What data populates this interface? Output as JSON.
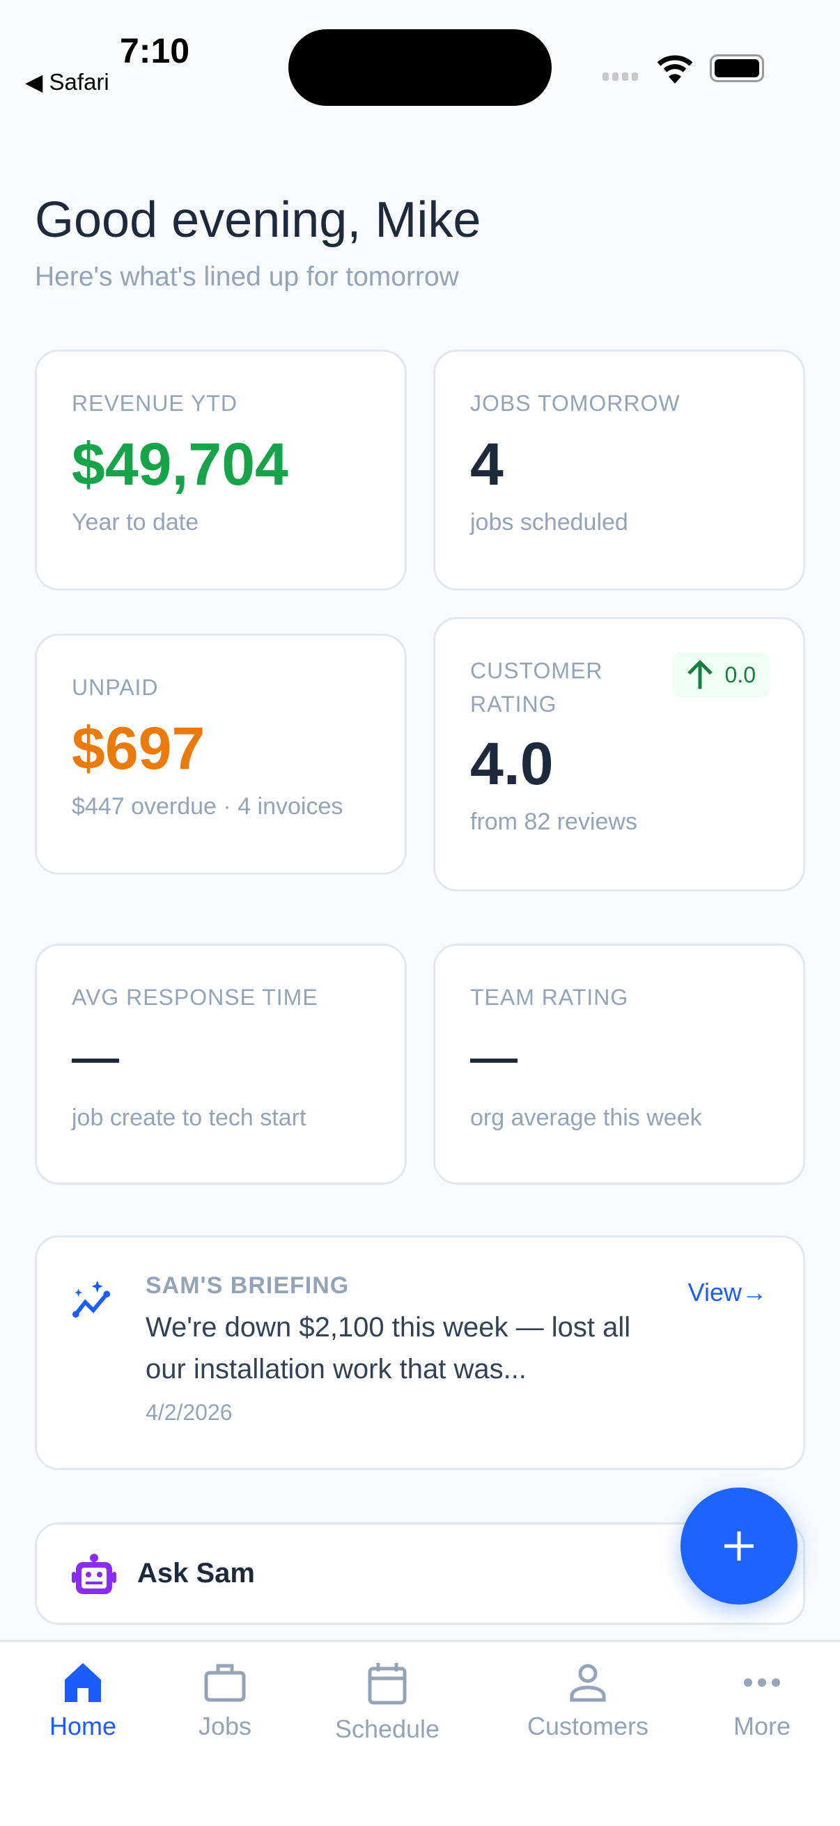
{
  "status_bar": {
    "time": "7:10",
    "back_app": "Safari"
  },
  "header": {
    "greeting": "Good evening, Mike",
    "subtitle": "Here's what's lined up for tomorrow"
  },
  "stats": [
    {
      "label": "REVENUE YTD",
      "value": "$49,704",
      "caption": "Year to date",
      "color": "#16a34a"
    },
    {
      "label": "JOBS TOMORROW",
      "value": "4",
      "caption": "jobs scheduled",
      "color": "#1e293b"
    },
    {
      "label": "UNPAID",
      "value": "$697",
      "caption": "$447 overdue · 4 invoices",
      "color": "#ea7a0c"
    },
    {
      "label": "CUSTOMER RATING",
      "value": "4.0",
      "caption": "from 82 reviews",
      "color": "#1e293b",
      "trend": "0.0",
      "trend_icon": "arrow-up-icon"
    },
    {
      "label": "AVG RESPONSE TIME",
      "value": "—",
      "caption": "job create to tech start"
    },
    {
      "label": "TEAM RATING",
      "value": "—",
      "caption": "org average this week"
    }
  ],
  "briefing": {
    "title": "SAM'S BRIEFING",
    "text": "We're down $2,100 this week — lost all our installation work that was...",
    "date": "4/2/2026",
    "view_label": "View→"
  },
  "ask_sam": {
    "label": "Ask Sam"
  },
  "nav": [
    {
      "label": "Home",
      "active": true
    },
    {
      "label": "Jobs"
    },
    {
      "label": "Schedule"
    },
    {
      "label": "Customers"
    },
    {
      "label": "More"
    }
  ],
  "colors": {
    "accent": "#1d63ff",
    "purple": "#8b2cf5"
  }
}
